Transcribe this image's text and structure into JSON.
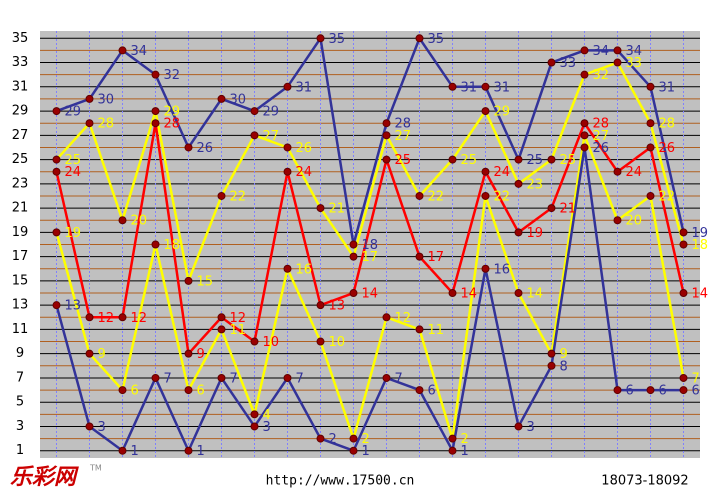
{
  "chart_data": {
    "type": "line",
    "ylim": [
      0.4,
      35.6
    ],
    "yticks": [
      1,
      3,
      5,
      7,
      9,
      11,
      13,
      15,
      17,
      19,
      21,
      23,
      25,
      27,
      29,
      31,
      33,
      35
    ],
    "minor_yticks": [
      2,
      4,
      6,
      8,
      10,
      12,
      14,
      16,
      18,
      20,
      22,
      24,
      26,
      28,
      30,
      32,
      34
    ],
    "grid": true,
    "series": [
      {
        "color": "#333399",
        "values": [
          29,
          30,
          34,
          32,
          26,
          30,
          29,
          31,
          35,
          18,
          28,
          35,
          31,
          31,
          25,
          33,
          34,
          34,
          31,
          19
        ]
      },
      {
        "color": "#ffff00",
        "values": [
          25,
          28,
          20,
          29,
          15,
          22,
          27,
          26,
          21,
          17,
          27,
          22,
          25,
          29,
          23,
          25,
          32,
          33,
          28,
          18
        ]
      },
      {
        "color": "#ff0000",
        "values": [
          24,
          12,
          12,
          28,
          9,
          12,
          10,
          24,
          13,
          14,
          25,
          17,
          14,
          24,
          19,
          21,
          28,
          24,
          26,
          14
        ]
      },
      {
        "color": "#ffff00",
        "values": [
          19,
          9,
          6,
          18,
          6,
          11,
          4,
          16,
          10,
          2,
          12,
          11,
          2,
          22,
          14,
          9,
          27,
          20,
          22,
          7
        ]
      },
      {
        "color": "#333399",
        "values": [
          13,
          3,
          1,
          7,
          1,
          7,
          3,
          7,
          2,
          1,
          7,
          6,
          1,
          16,
          3,
          8,
          26,
          6,
          6,
          6
        ]
      }
    ],
    "logo": "乐彩网",
    "logo_mark": "TM",
    "url": "http://www.17500.cn",
    "range_label": "18073-18092"
  }
}
